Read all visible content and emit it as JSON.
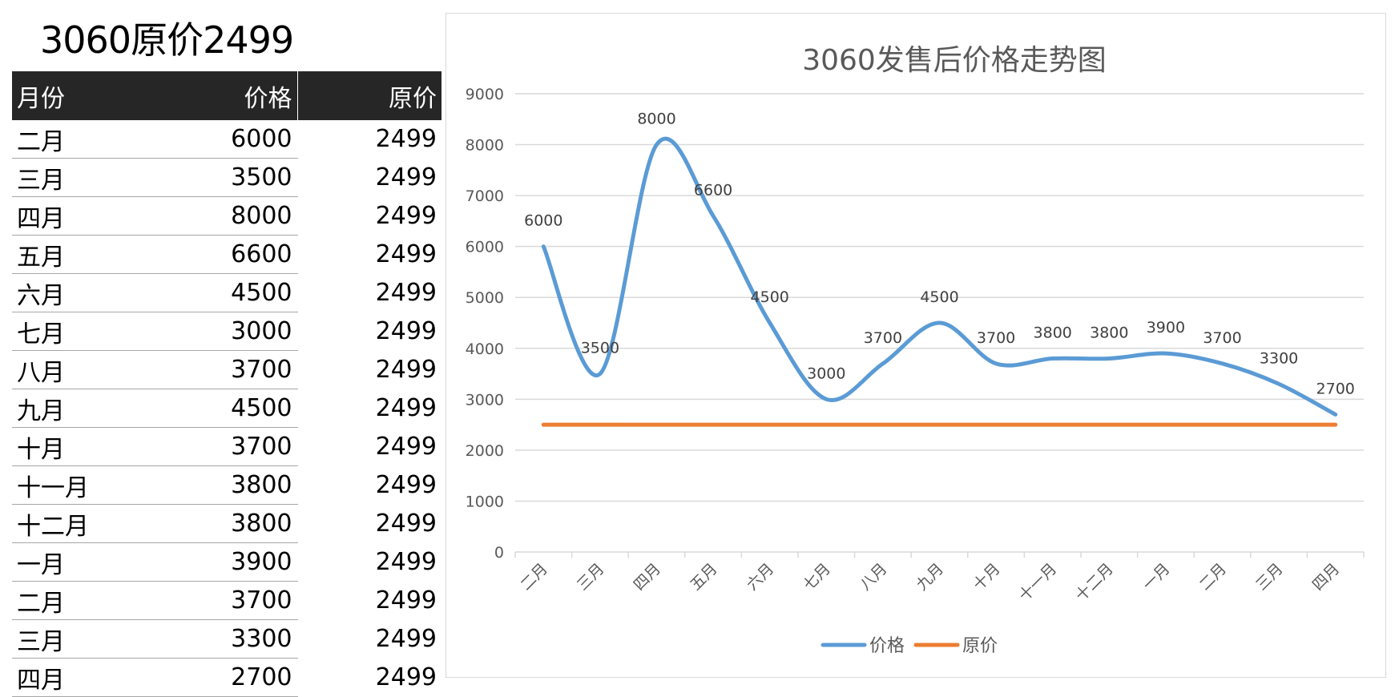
{
  "sheet": {
    "title": "3060原价2499",
    "headers": [
      "月份",
      "价格",
      "原价"
    ],
    "rows": [
      [
        "二月",
        "6000",
        "2499"
      ],
      [
        "三月",
        "3500",
        "2499"
      ],
      [
        "四月",
        "8000",
        "2499"
      ],
      [
        "五月",
        "6600",
        "2499"
      ],
      [
        "六月",
        "4500",
        "2499"
      ],
      [
        "七月",
        "3000",
        "2499"
      ],
      [
        "八月",
        "3700",
        "2499"
      ],
      [
        "九月",
        "4500",
        "2499"
      ],
      [
        "十月",
        "3700",
        "2499"
      ],
      [
        "十一月",
        "3800",
        "2499"
      ],
      [
        "十二月",
        "3800",
        "2499"
      ],
      [
        "一月",
        "3900",
        "2499"
      ],
      [
        "二月",
        "3700",
        "2499"
      ],
      [
        "三月",
        "3300",
        "2499"
      ],
      [
        "四月",
        "2700",
        "2499"
      ]
    ]
  },
  "chart_data": {
    "type": "line",
    "title": "3060发售后价格走势图",
    "xlabel": "",
    "ylabel": "",
    "categories": [
      "二月",
      "三月",
      "四月",
      "五月",
      "六月",
      "七月",
      "八月",
      "九月",
      "十月",
      "十一月",
      "十二月",
      "一月",
      "二月",
      "三月",
      "四月"
    ],
    "series": [
      {
        "name": "价格",
        "color": "#5b9bd5",
        "smooth": true,
        "data_labels": true,
        "values": [
          6000,
          3500,
          8000,
          6600,
          4500,
          3000,
          3700,
          4500,
          3700,
          3800,
          3800,
          3900,
          3700,
          3300,
          2700
        ]
      },
      {
        "name": "原价",
        "color": "#ed7d31",
        "smooth": false,
        "data_labels": false,
        "values": [
          2499,
          2499,
          2499,
          2499,
          2499,
          2499,
          2499,
          2499,
          2499,
          2499,
          2499,
          2499,
          2499,
          2499,
          2499
        ]
      }
    ],
    "ylim": [
      0,
      9000
    ],
    "yticks": [
      0,
      1000,
      2000,
      3000,
      4000,
      5000,
      6000,
      7000,
      8000,
      9000
    ],
    "grid": true,
    "legend": "bottom"
  }
}
